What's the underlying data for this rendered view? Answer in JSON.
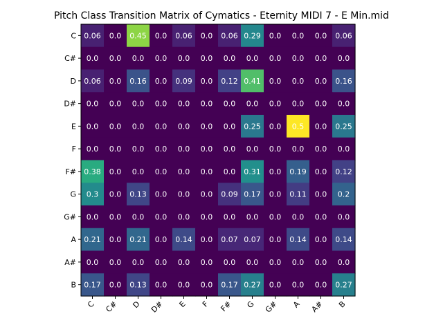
{
  "chart_data": {
    "type": "heatmap",
    "title": "Pitch Class Transition Matrix of Cymatics - Eternity MIDI 7 - E Min.mid",
    "xlabel": "",
    "ylabel": "",
    "x_categories": [
      "C",
      "C#",
      "D",
      "D#",
      "E",
      "F",
      "F#",
      "G",
      "G#",
      "A",
      "A#",
      "B"
    ],
    "y_categories": [
      "C",
      "C#",
      "D",
      "D#",
      "E",
      "F",
      "F#",
      "G",
      "G#",
      "A",
      "A#",
      "B"
    ],
    "x_tick_rotation": 45,
    "colormap": "viridis",
    "vmin": 0.0,
    "vmax": 0.5,
    "show_colorbar": false,
    "grid": false,
    "values": [
      [
        0.06,
        0.0,
        0.45,
        0.0,
        0.06,
        0.0,
        0.06,
        0.29,
        0.0,
        0.0,
        0.0,
        0.06
      ],
      [
        0.0,
        0.0,
        0.0,
        0.0,
        0.0,
        0.0,
        0.0,
        0.0,
        0.0,
        0.0,
        0.0,
        0.0
      ],
      [
        0.06,
        0.0,
        0.16,
        0.0,
        0.09,
        0.0,
        0.12,
        0.41,
        0.0,
        0.0,
        0.0,
        0.16
      ],
      [
        0.0,
        0.0,
        0.0,
        0.0,
        0.0,
        0.0,
        0.0,
        0.0,
        0.0,
        0.0,
        0.0,
        0.0
      ],
      [
        0.0,
        0.0,
        0.0,
        0.0,
        0.0,
        0.0,
        0.0,
        0.25,
        0.0,
        0.5,
        0.0,
        0.25
      ],
      [
        0.0,
        0.0,
        0.0,
        0.0,
        0.0,
        0.0,
        0.0,
        0.0,
        0.0,
        0.0,
        0.0,
        0.0
      ],
      [
        0.38,
        0.0,
        0.0,
        0.0,
        0.0,
        0.0,
        0.0,
        0.31,
        0.0,
        0.19,
        0.0,
        0.12
      ],
      [
        0.3,
        0.0,
        0.13,
        0.0,
        0.0,
        0.0,
        0.09,
        0.17,
        0.0,
        0.11,
        0.0,
        0.2
      ],
      [
        0.0,
        0.0,
        0.0,
        0.0,
        0.0,
        0.0,
        0.0,
        0.0,
        0.0,
        0.0,
        0.0,
        0.0
      ],
      [
        0.21,
        0.0,
        0.21,
        0.0,
        0.14,
        0.0,
        0.07,
        0.07,
        0.0,
        0.14,
        0.0,
        0.14
      ],
      [
        0.0,
        0.0,
        0.0,
        0.0,
        0.0,
        0.0,
        0.0,
        0.0,
        0.0,
        0.0,
        0.0,
        0.0
      ],
      [
        0.17,
        0.0,
        0.13,
        0.0,
        0.0,
        0.0,
        0.17,
        0.27,
        0.0,
        0.0,
        0.0,
        0.27
      ]
    ]
  }
}
